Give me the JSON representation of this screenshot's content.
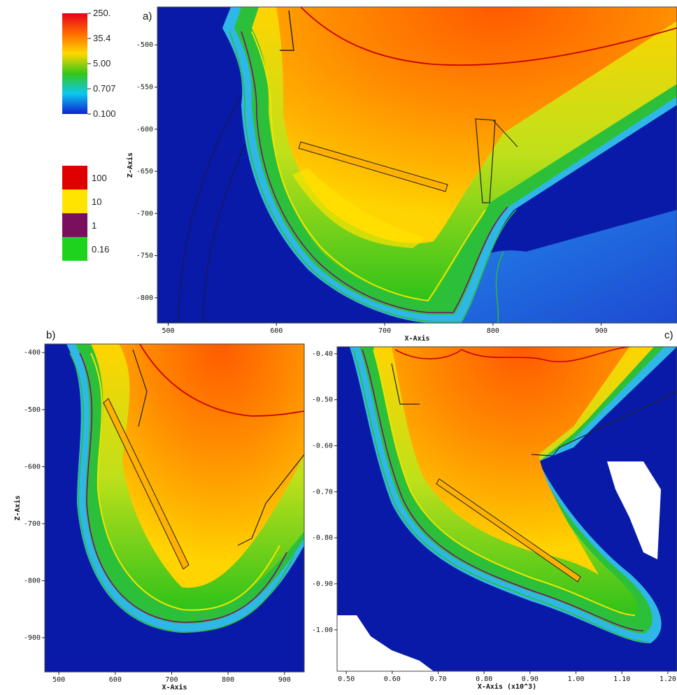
{
  "colors": {
    "background": "#0a1aa8",
    "contour_red": "#d10000",
    "contour_yellow": "#f5e600",
    "contour_purple": "#7a0f70",
    "contour_green": "#2ebd2e",
    "blank_region": "#ffffff"
  },
  "legend_continuous": {
    "scale": "log",
    "ticks": [
      "250.",
      "35.4",
      "5.00",
      "0.707",
      "0.100"
    ],
    "colormap": [
      "#e8001c",
      "#ff6a00",
      "#ffd800",
      "#35c61a",
      "#0bc8f0",
      "#1020d0"
    ]
  },
  "legend_discrete": {
    "entries": [
      {
        "label": "100",
        "color": "#e00000"
      },
      {
        "label": "10",
        "color": "#ffe400"
      },
      {
        "label": "1",
        "color": "#7a0f5e"
      },
      {
        "label": "0.16",
        "color": "#1ed21e"
      }
    ]
  },
  "chart_data": [
    {
      "panel": "a)",
      "type": "heatmap",
      "xlabel": "X-Axis",
      "ylabel": "Z-Axis",
      "xlim": [
        490,
        970
      ],
      "ylim": [
        -830,
        -455
      ],
      "x_ticks": [
        "500",
        "600",
        "700",
        "800",
        "900"
      ],
      "x_tick_values": [
        500,
        600,
        700,
        800,
        900
      ],
      "y_ticks": [
        "-500",
        "-550",
        "-600",
        "-650",
        "-700",
        "-750",
        "-800"
      ],
      "y_tick_values": [
        -500,
        -550,
        -600,
        -650,
        -700,
        -750,
        -800
      ],
      "contour_levels": [
        100,
        10,
        1,
        0.16
      ]
    },
    {
      "panel": "b)",
      "type": "heatmap",
      "xlabel": "X-Axis",
      "ylabel": "Z-Axis",
      "xlim": [
        475,
        935
      ],
      "ylim": [
        -960,
        -385
      ],
      "x_ticks": [
        "500",
        "600",
        "700",
        "800",
        "900"
      ],
      "x_tick_values": [
        500,
        600,
        700,
        800,
        900
      ],
      "y_ticks": [
        "-400",
        "-500",
        "-600",
        "-700",
        "-800",
        "-900"
      ],
      "y_tick_values": [
        -400,
        -500,
        -600,
        -700,
        -800,
        -900
      ],
      "contour_levels": [
        100,
        10,
        1,
        0.16
      ]
    },
    {
      "panel": "c)",
      "type": "heatmap",
      "xlabel": "X-Axis (x10^3)",
      "ylabel": "",
      "xlim": [
        0.48,
        1.22
      ],
      "ylim": [
        -1.09,
        -0.385
      ],
      "x_ticks": [
        "0.50",
        "0.60",
        "0.70",
        "0.80",
        "0.90",
        "1.00",
        "1.10",
        "1.20"
      ],
      "x_tick_values": [
        0.5,
        0.6,
        0.7,
        0.8,
        0.9,
        1.0,
        1.1,
        1.2
      ],
      "y_ticks": [
        "-0.40",
        "-0.50",
        "-0.60",
        "-0.70",
        "-0.80",
        "-0.90",
        "-1.00"
      ],
      "y_tick_values": [
        -0.4,
        -0.5,
        -0.6,
        -0.7,
        -0.8,
        -0.9,
        -1.0
      ],
      "contour_levels": [
        100,
        10,
        1,
        0.16
      ]
    }
  ]
}
